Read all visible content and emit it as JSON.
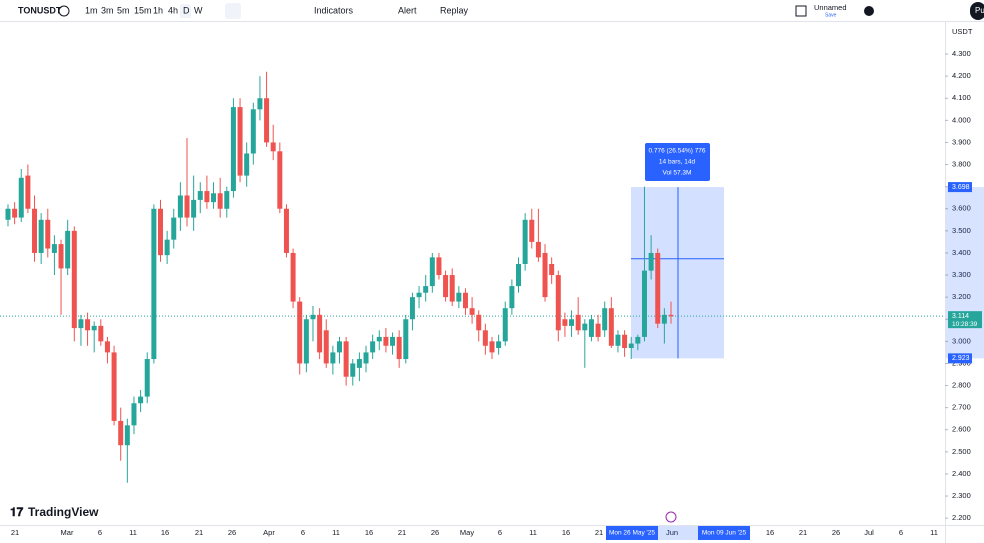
{
  "toolbar": {
    "symbol": "TONUSDT",
    "intervals": [
      "1m",
      "3m",
      "5m",
      "15m",
      "1h",
      "4h",
      "D",
      "W"
    ],
    "indicators": "Indicators",
    "alert": "Alert",
    "replay": "Replay",
    "layout_name": "Unnamed",
    "save": "Save",
    "user": "Pu"
  },
  "chart_data": {
    "type": "candlestick",
    "up_color": "#26a69a",
    "down_color": "#ef5350",
    "currency": "USDT",
    "ylim": [
      2.169,
      4.445
    ],
    "yticks": [
      {
        "value": 2.2,
        "label": "2.200"
      },
      {
        "value": 2.3,
        "label": "2.300"
      },
      {
        "value": 2.4,
        "label": "2.400"
      },
      {
        "value": 2.5,
        "label": "2.500"
      },
      {
        "value": 2.6,
        "label": "2.600"
      },
      {
        "value": 2.7,
        "label": "2.700"
      },
      {
        "value": 2.8,
        "label": "2.800"
      },
      {
        "value": 2.9,
        "label": "2.900"
      },
      {
        "value": 3.0,
        "label": "3.000"
      },
      {
        "value": 3.1,
        "label": "3.100"
      },
      {
        "value": 3.2,
        "label": "3.200"
      },
      {
        "value": 3.3,
        "label": "3.300"
      },
      {
        "value": 3.4,
        "label": "3.400"
      },
      {
        "value": 3.5,
        "label": "3.500"
      },
      {
        "value": 3.6,
        "label": "3.600"
      },
      {
        "value": 3.7,
        "label": "3.700"
      },
      {
        "value": 3.8,
        "label": "3.800"
      },
      {
        "value": 3.9,
        "label": "3.900"
      },
      {
        "value": 4.0,
        "label": "4.000"
      },
      {
        "value": 4.1,
        "label": "4.100"
      },
      {
        "value": 4.2,
        "label": "4.200"
      },
      {
        "value": 4.3,
        "label": "4.300"
      }
    ],
    "xlabels": [
      "21",
      "Mar",
      "6",
      "11",
      "16",
      "21",
      "26",
      "Apr",
      "6",
      "11",
      "16",
      "21",
      "26",
      "May",
      "6",
      "11",
      "16",
      "21",
      "Jun",
      "16",
      "21",
      "26",
      "Jul",
      "6",
      "11"
    ],
    "ohlc": [
      [
        3.55,
        3.62,
        3.52,
        3.6
      ],
      [
        3.6,
        3.63,
        3.53,
        3.56
      ],
      [
        3.56,
        3.78,
        3.54,
        3.74
      ],
      [
        3.75,
        3.8,
        3.58,
        3.6
      ],
      [
        3.6,
        3.66,
        3.36,
        3.4
      ],
      [
        3.4,
        3.58,
        3.35,
        3.55
      ],
      [
        3.55,
        3.6,
        3.38,
        3.42
      ],
      [
        3.4,
        3.48,
        3.3,
        3.44
      ],
      [
        3.44,
        3.46,
        3.12,
        3.33
      ],
      [
        3.33,
        3.55,
        3.3,
        3.5
      ],
      [
        3.5,
        3.52,
        3.0,
        3.06
      ],
      [
        3.06,
        3.12,
        2.98,
        3.1
      ],
      [
        3.1,
        3.13,
        2.98,
        3.05
      ],
      [
        3.05,
        3.09,
        2.95,
        3.07
      ],
      [
        3.07,
        3.1,
        2.98,
        3.0
      ],
      [
        3.0,
        3.02,
        2.9,
        2.95
      ],
      [
        2.95,
        2.98,
        2.62,
        2.64
      ],
      [
        2.64,
        2.7,
        2.46,
        2.53
      ],
      [
        2.53,
        2.65,
        2.36,
        2.62
      ],
      [
        2.62,
        2.75,
        2.58,
        2.72
      ],
      [
        2.72,
        2.78,
        2.68,
        2.75
      ],
      [
        2.75,
        2.95,
        2.72,
        2.92
      ],
      [
        2.92,
        3.62,
        2.9,
        3.6
      ],
      [
        3.6,
        3.64,
        3.36,
        3.39
      ],
      [
        3.39,
        3.5,
        3.35,
        3.46
      ],
      [
        3.46,
        3.6,
        3.42,
        3.56
      ],
      [
        3.56,
        3.72,
        3.5,
        3.66
      ],
      [
        3.66,
        3.92,
        3.52,
        3.56
      ],
      [
        3.56,
        3.75,
        3.5,
        3.64
      ],
      [
        3.64,
        3.72,
        3.58,
        3.68
      ],
      [
        3.68,
        3.75,
        3.6,
        3.63
      ],
      [
        3.63,
        3.72,
        3.6,
        3.67
      ],
      [
        3.67,
        3.74,
        3.56,
        3.6
      ],
      [
        3.6,
        3.7,
        3.56,
        3.68
      ],
      [
        3.68,
        4.1,
        3.65,
        4.06
      ],
      [
        4.06,
        4.1,
        3.72,
        3.75
      ],
      [
        3.75,
        3.9,
        3.7,
        3.85
      ],
      [
        3.85,
        4.08,
        3.8,
        4.05
      ],
      [
        4.05,
        4.2,
        4.0,
        4.1
      ],
      [
        4.1,
        4.22,
        3.88,
        3.9
      ],
      [
        3.9,
        3.98,
        3.82,
        3.86
      ],
      [
        3.86,
        3.9,
        3.58,
        3.6
      ],
      [
        3.6,
        3.62,
        3.38,
        3.4
      ],
      [
        3.4,
        3.42,
        3.15,
        3.18
      ],
      [
        3.18,
        3.2,
        2.85,
        2.9
      ],
      [
        2.9,
        3.12,
        2.86,
        3.1
      ],
      [
        3.1,
        3.16,
        3.0,
        3.12
      ],
      [
        3.12,
        3.15,
        2.92,
        2.95
      ],
      [
        3.05,
        3.1,
        2.88,
        2.9
      ],
      [
        2.9,
        2.98,
        2.85,
        2.95
      ],
      [
        2.95,
        3.02,
        2.9,
        3.0
      ],
      [
        3.0,
        3.02,
        2.8,
        2.84
      ],
      [
        2.84,
        2.92,
        2.8,
        2.9
      ],
      [
        2.88,
        2.95,
        2.82,
        2.92
      ],
      [
        2.9,
        2.98,
        2.86,
        2.95
      ],
      [
        2.95,
        3.03,
        2.92,
        3.0
      ],
      [
        3.0,
        3.05,
        2.96,
        3.02
      ],
      [
        3.02,
        3.06,
        2.95,
        2.98
      ],
      [
        2.98,
        3.04,
        2.94,
        3.02
      ],
      [
        3.02,
        3.05,
        2.88,
        2.92
      ],
      [
        2.92,
        3.12,
        2.9,
        3.1
      ],
      [
        3.1,
        3.22,
        3.05,
        3.2
      ],
      [
        3.2,
        3.25,
        3.15,
        3.22
      ],
      [
        3.22,
        3.3,
        3.18,
        3.25
      ],
      [
        3.25,
        3.4,
        3.22,
        3.38
      ],
      [
        3.38,
        3.4,
        3.28,
        3.3
      ],
      [
        3.3,
        3.32,
        3.18,
        3.2
      ],
      [
        3.3,
        3.33,
        3.16,
        3.18
      ],
      [
        3.18,
        3.25,
        3.15,
        3.22
      ],
      [
        3.22,
        3.24,
        3.12,
        3.15
      ],
      [
        3.15,
        3.2,
        3.08,
        3.12
      ],
      [
        3.12,
        3.14,
        3.0,
        3.05
      ],
      [
        3.05,
        3.08,
        2.94,
        2.98
      ],
      [
        3.0,
        3.02,
        2.92,
        2.95
      ],
      [
        2.97,
        3.03,
        2.94,
        3.0
      ],
      [
        3.0,
        3.18,
        2.98,
        3.15
      ],
      [
        3.15,
        3.28,
        3.12,
        3.25
      ],
      [
        3.25,
        3.38,
        3.22,
        3.35
      ],
      [
        3.35,
        3.58,
        3.32,
        3.55
      ],
      [
        3.55,
        3.6,
        3.42,
        3.45
      ],
      [
        3.45,
        3.6,
        3.36,
        3.38
      ],
      [
        3.4,
        3.44,
        3.18,
        3.2
      ],
      [
        3.35,
        3.38,
        3.26,
        3.3
      ],
      [
        3.3,
        3.32,
        3.0,
        3.05
      ],
      [
        3.1,
        3.13,
        3.02,
        3.07
      ],
      [
        3.07,
        3.14,
        3.02,
        3.1
      ],
      [
        3.12,
        3.2,
        3.03,
        3.05
      ],
      [
        3.05,
        3.1,
        2.88,
        3.08
      ],
      [
        3.02,
        3.12,
        3.0,
        3.1
      ],
      [
        3.08,
        3.12,
        3.0,
        3.02
      ],
      [
        3.05,
        3.18,
        3.02,
        3.15
      ],
      [
        3.15,
        3.2,
        2.97,
        2.98
      ],
      [
        2.98,
        3.05,
        2.95,
        3.03
      ],
      [
        3.03,
        3.05,
        2.93,
        2.97
      ],
      [
        2.97,
        3.02,
        2.92,
        2.99
      ],
      [
        2.99,
        3.03,
        2.96,
        3.02
      ],
      [
        3.02,
        3.7,
        3.0,
        3.32
      ],
      [
        3.32,
        3.48,
        3.28,
        3.4
      ],
      [
        3.4,
        3.42,
        3.06,
        3.08
      ],
      [
        3.08,
        3.15,
        2.99,
        3.12
      ],
      [
        3.12,
        3.18,
        3.08,
        3.114
      ]
    ],
    "measure": {
      "lines": [
        "0.776 (26.54%) 776",
        "14 bars, 14d",
        "Vol 57.3M"
      ],
      "top": {
        "value": 3.698,
        "label": "3.698"
      },
      "bottom": {
        "value": 2.923,
        "label": "2.923"
      },
      "start_date": "Mon 26 May '25",
      "end_date": "Mon 09 Jun '25"
    },
    "last_price": {
      "value": 3.114,
      "label": "3.114",
      "countdown": "10:28:39"
    }
  },
  "brand": "TradingView"
}
